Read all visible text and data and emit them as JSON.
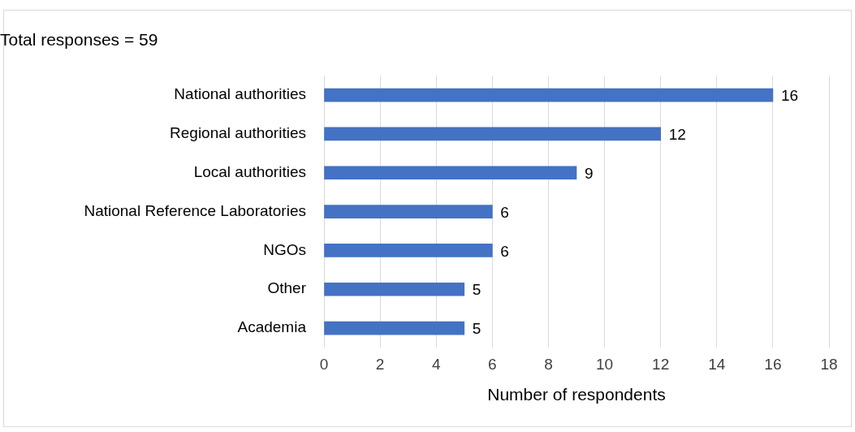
{
  "chart_data": {
    "type": "bar",
    "orientation": "horizontal",
    "title": "Total responses = 59",
    "xlabel": "Number of respondents",
    "categories": [
      "National authorities",
      "Regional authorities",
      "Local authorities",
      "National Reference Laboratories",
      "NGOs",
      "Other",
      "Academia"
    ],
    "values": [
      16,
      12,
      9,
      6,
      6,
      5,
      5
    ],
    "color": "#4472c4",
    "xlim": [
      0,
      18
    ],
    "xticks": [
      0,
      2,
      4,
      6,
      8,
      10,
      12,
      14,
      16,
      18
    ],
    "grid": "x",
    "data_labels": true,
    "legend": false
  }
}
